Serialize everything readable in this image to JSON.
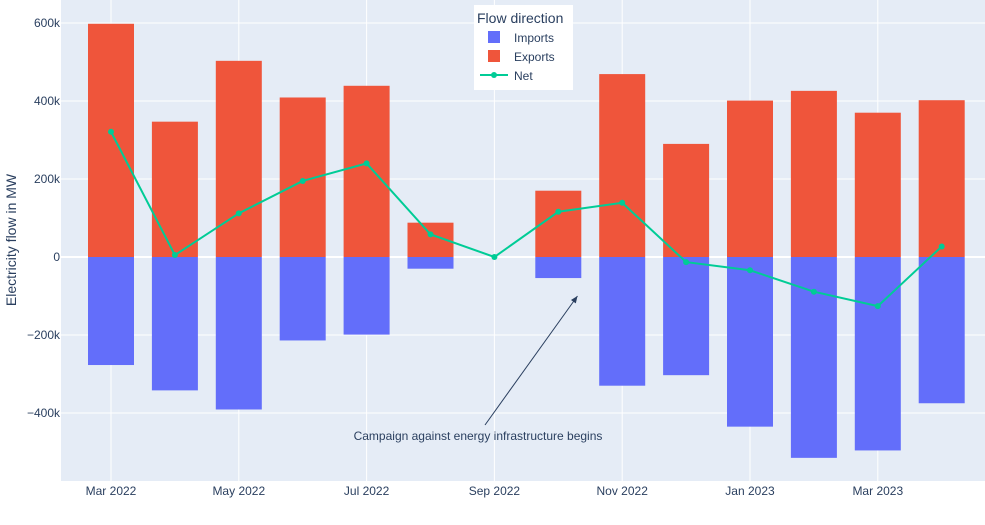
{
  "chart_data": {
    "type": "bar",
    "barmode": "relative",
    "x": [
      "2022-03",
      "2022-04",
      "2022-05",
      "2022-06",
      "2022-07",
      "2022-08",
      "2022-09",
      "2022-10",
      "2022-11",
      "2022-12",
      "2023-01",
      "2023-02",
      "2023-03",
      "2023-04"
    ],
    "series": [
      {
        "name": "Imports",
        "type": "bar",
        "color": "#636efa",
        "values": [
          -277000,
          -342000,
          -391000,
          -214000,
          -199000,
          -30000,
          0,
          -54000,
          -330000,
          -303000,
          -435000,
          -515000,
          -496000,
          -375000
        ]
      },
      {
        "name": "Exports",
        "type": "bar",
        "color": "#ef553b",
        "values": [
          598000,
          347000,
          503000,
          409000,
          439000,
          88000,
          0,
          170000,
          469000,
          290000,
          401000,
          426000,
          370000,
          402000
        ]
      },
      {
        "name": "Net",
        "type": "line",
        "color": "#00cc96",
        "values": [
          321000,
          5000,
          112000,
          195000,
          240000,
          58000,
          0,
          116000,
          139000,
          -13000,
          -34000,
          -89000,
          -126000,
          27000
        ]
      }
    ],
    "ylabel": "Electricity flow in MW",
    "ylim": [
      -580000,
      650000
    ],
    "yticks": [
      {
        "value": 600000,
        "label": "600k"
      },
      {
        "value": 400000,
        "label": "400k"
      },
      {
        "value": 200000,
        "label": "200k"
      },
      {
        "value": 0,
        "label": "0"
      },
      {
        "value": -200000,
        "label": "−200k"
      },
      {
        "value": -400000,
        "label": "−400k"
      }
    ],
    "xticks": [
      {
        "index": 0,
        "label": "Mar 2022"
      },
      {
        "index": 2,
        "label": "May 2022"
      },
      {
        "index": 4,
        "label": "Jul 2022"
      },
      {
        "index": 6,
        "label": "Sep 2022"
      },
      {
        "index": 8,
        "label": "Nov 2022"
      },
      {
        "index": 10,
        "label": "Jan 2023"
      },
      {
        "index": 12,
        "label": "Mar 2023"
      }
    ],
    "legend": {
      "title": "Flow direction",
      "placement": "top-center"
    },
    "grid": true,
    "annotation": {
      "text": "Campaign against energy infrastructure begins",
      "x_index": 7.3,
      "y": -100000
    }
  }
}
